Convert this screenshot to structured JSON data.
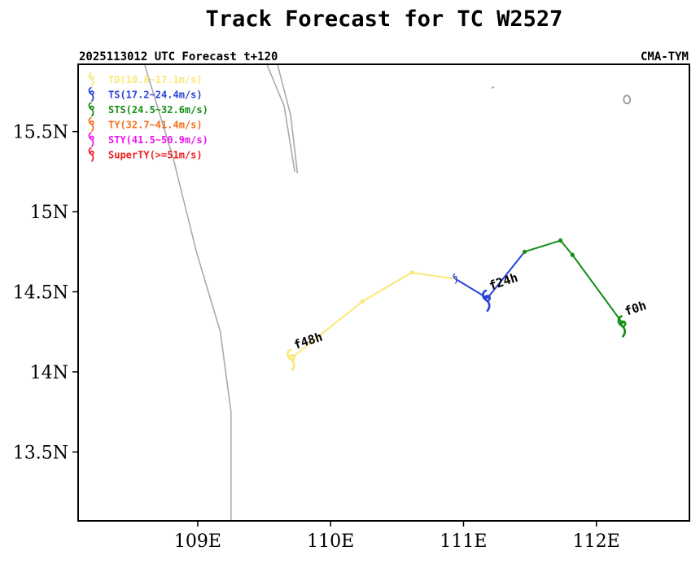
{
  "chart_data": {
    "type": "line",
    "title": "Track Forecast for TC W2527",
    "subtitle_left": "2025113012 UTC Forecast t+120",
    "subtitle_right": "CMA-TYM",
    "xlabel": "",
    "ylabel": "",
    "xlim": [
      108.1,
      112.7
    ],
    "ylim": [
      13.07,
      15.92
    ],
    "x_ticks": [
      {
        "value": 109,
        "label": "109E"
      },
      {
        "value": 110,
        "label": "110E"
      },
      {
        "value": 111,
        "label": "111E"
      },
      {
        "value": 112,
        "label": "112E"
      }
    ],
    "y_ticks": [
      {
        "value": 13.5,
        "label": "13.5N"
      },
      {
        "value": 14,
        "label": "14N"
      },
      {
        "value": 14.5,
        "label": "14.5N"
      },
      {
        "value": 15,
        "label": "15N"
      },
      {
        "value": 15.5,
        "label": "15.5N"
      }
    ],
    "legend": [
      {
        "label": "TD(10.8~17.1m/s)",
        "color": "#fae77a"
      },
      {
        "label": "TS(17.2~24.4m/s)",
        "color": "#2a43d8"
      },
      {
        "label": "STS(24.5~32.6m/s)",
        "color": "#138e13"
      },
      {
        "label": "TY(32.7~41.4m/s)",
        "color": "#f5701c"
      },
      {
        "label": "STY(41.5~50.9m/s)",
        "color": "#f014f0"
      },
      {
        "label": "SuperTY(>=51m/s)",
        "color": "#f01e1e"
      }
    ],
    "track": [
      {
        "lon": 112.2,
        "lat": 14.3,
        "cat": "STS"
      },
      {
        "lon": 111.82,
        "lat": 14.73,
        "cat": "STS"
      },
      {
        "lon": 111.73,
        "lat": 14.82,
        "cat": "STS"
      },
      {
        "lon": 111.46,
        "lat": 14.75,
        "cat": "STS"
      },
      {
        "lon": 111.18,
        "lat": 14.46,
        "cat": "TS"
      },
      {
        "lon": 110.94,
        "lat": 14.58,
        "cat": "TS"
      },
      {
        "lon": 110.61,
        "lat": 14.62,
        "cat": "TD"
      },
      {
        "lon": 110.24,
        "lat": 14.44,
        "cat": "TD"
      },
      {
        "lon": 109.71,
        "lat": 14.09,
        "cat": "TD"
      }
    ],
    "segment_colors": {
      "TD": "#fae77a",
      "TS": "#2a43d8",
      "STS": "#138e13"
    },
    "markers": [
      {
        "lon": 112.2,
        "lat": 14.3,
        "cat": "STS",
        "label": "f0h"
      },
      {
        "lon": 111.18,
        "lat": 14.46,
        "cat": "TS",
        "label": "f24h"
      },
      {
        "lon": 109.71,
        "lat": 14.09,
        "cat": "TD",
        "label": "f48h"
      }
    ],
    "coastlines": [
      [
        [
          108.6,
          15.92
        ],
        [
          108.82,
          15.32
        ],
        [
          108.99,
          14.75
        ],
        [
          109.17,
          14.25
        ],
        [
          109.25,
          13.75
        ],
        [
          109.25,
          13.07
        ]
      ],
      [
        [
          109.52,
          15.92
        ],
        [
          109.65,
          15.66
        ],
        [
          109.73,
          15.25
        ]
      ],
      [
        [
          109.6,
          15.92
        ],
        [
          109.7,
          15.6
        ],
        [
          109.75,
          15.24
        ]
      ],
      [
        [
          111.21,
          15.77
        ],
        [
          111.23,
          15.78
        ]
      ]
    ],
    "islands": [
      {
        "lon": 112.23,
        "lat": 15.7
      }
    ]
  }
}
